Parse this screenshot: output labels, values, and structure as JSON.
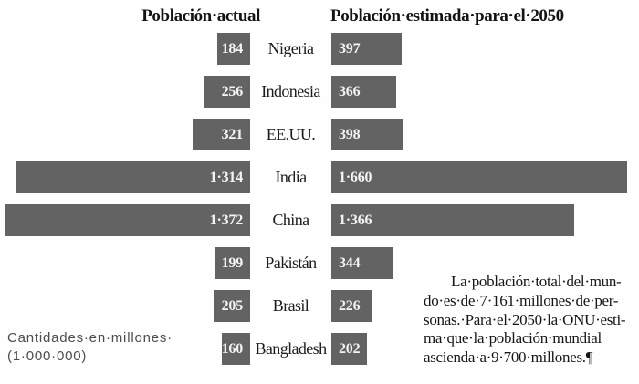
{
  "chart_data": {
    "type": "bar",
    "orientation": "horizontal-bidirectional",
    "left_header": "Población·actual",
    "right_header": "Población·estimada·para·el·2050",
    "categories": [
      "Nigeria",
      "Indonesia",
      "EE.UU.",
      "India",
      "China",
      "Pakistán",
      "Brasil",
      "Bangladesh"
    ],
    "series": [
      {
        "name": "Población actual",
        "values": [
          184,
          256,
          321,
          1314,
          1372,
          199,
          205,
          160
        ],
        "labels": [
          "184",
          "256",
          "321",
          "1·314",
          "1·372",
          "199",
          "205",
          "160"
        ]
      },
      {
        "name": "Población estimada para el 2050",
        "values": [
          397,
          366,
          398,
          1660,
          1366,
          344,
          226,
          202
        ],
        "labels": [
          "397",
          "366",
          "398",
          "1·660",
          "1·366",
          "344",
          "226",
          "202"
        ]
      }
    ],
    "unit": "millones de personas",
    "bar_color": "#636363",
    "value_label_color": "#f4f4f4",
    "xlim_each_side": [
      0,
      1700
    ],
    "grid": false,
    "legend_position": "top-headers"
  },
  "notes": {
    "unit_line1": "Cantidades·en·millones·",
    "unit_line2": "(1·000·000)"
  },
  "annotation": {
    "lines": [
      "La·población·total·del·mun-",
      "do·es·de·7·161·millones·de·per-",
      "sonas.·Para·el·2050·la·ONU·esti-",
      "ma·que·la·población·mundial",
      "ascienda·a·9·700·millones.¶"
    ]
  }
}
